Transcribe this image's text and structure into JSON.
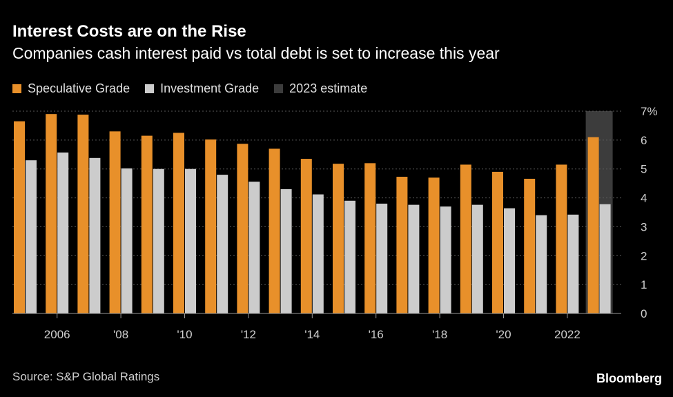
{
  "chart_data": {
    "type": "bar",
    "title": "Interest Costs are on the Rise",
    "subtitle": "Companies cash interest paid vs total debt is set to increase this year",
    "categories": [
      "2005",
      "2006",
      "2007",
      "2008",
      "2009",
      "2010",
      "2011",
      "2012",
      "2013",
      "2014",
      "2015",
      "2016",
      "2017",
      "2018",
      "2019",
      "2020",
      "2021",
      "2022",
      "2023"
    ],
    "x_tick_labels": [
      {
        "category": "2006",
        "label": "2006"
      },
      {
        "category": "2008",
        "label": "'08"
      },
      {
        "category": "2010",
        "label": "'10"
      },
      {
        "category": "2012",
        "label": "'12"
      },
      {
        "category": "2014",
        "label": "'14"
      },
      {
        "category": "2016",
        "label": "'16"
      },
      {
        "category": "2018",
        "label": "'18"
      },
      {
        "category": "2020",
        "label": "'20"
      },
      {
        "category": "2022",
        "label": "2022"
      }
    ],
    "series": [
      {
        "name": "Speculative Grade",
        "color": "#e8902a",
        "values": [
          6.65,
          6.9,
          6.88,
          6.3,
          6.15,
          6.25,
          6.02,
          5.87,
          5.7,
          5.35,
          5.18,
          5.2,
          4.73,
          4.7,
          5.15,
          4.9,
          4.66,
          5.15,
          6.1
        ]
      },
      {
        "name": "Investment Grade",
        "color": "#cccccc",
        "values": [
          5.3,
          5.57,
          5.38,
          5.02,
          5.0,
          5.0,
          4.8,
          4.56,
          4.3,
          4.12,
          3.9,
          3.8,
          3.76,
          3.7,
          3.76,
          3.64,
          3.4,
          3.42,
          3.78
        ]
      }
    ],
    "estimate": {
      "name": "2023 estimate",
      "category": "2023",
      "color": "#3c3c3c"
    },
    "y_ticks": [
      "0",
      "1",
      "2",
      "3",
      "4",
      "5",
      "6",
      "7%"
    ],
    "ylim": [
      0,
      7
    ],
    "grid": true,
    "legend_position": "top-left"
  },
  "source": "Source: S&P Global Ratings",
  "brand": "Bloomberg"
}
